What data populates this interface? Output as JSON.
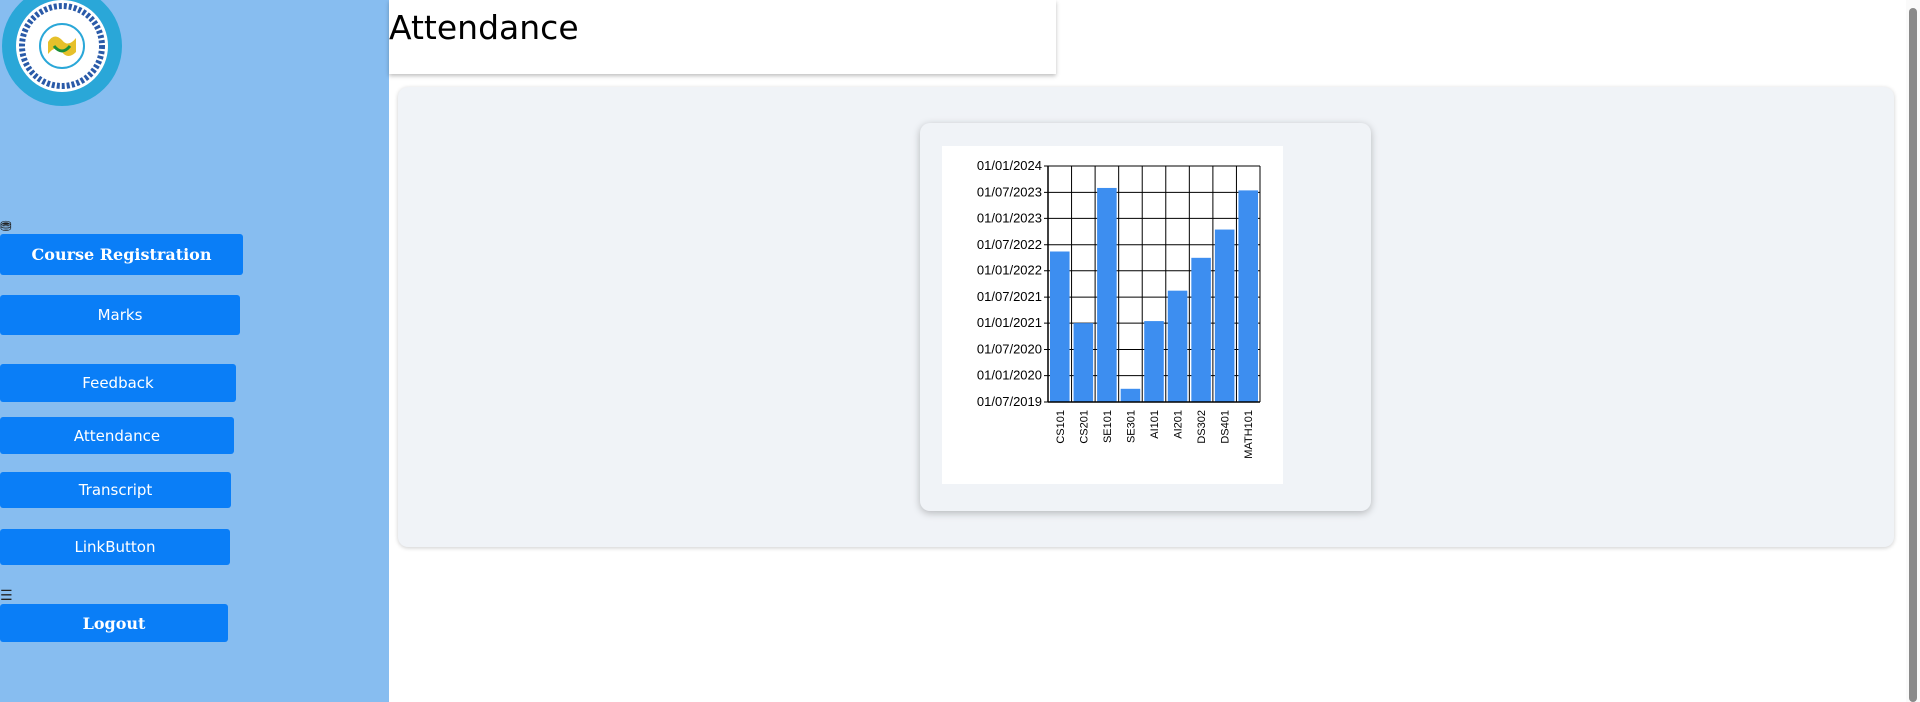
{
  "page": {
    "title": "Attendance"
  },
  "sidebar": {
    "items": [
      {
        "label": "Course Registration"
      },
      {
        "label": "Marks"
      },
      {
        "label": "Feedback"
      },
      {
        "label": "Attendance"
      },
      {
        "label": "Transcript"
      },
      {
        "label": "LinkButton"
      },
      {
        "label": "Logout"
      }
    ]
  },
  "colors": {
    "sidebar_bg": "#87bdf0",
    "button": "#0a7ef7",
    "bar": "#3d8ef0"
  },
  "icons": [
    "logo-seal",
    "dashboard-icon",
    "menu-icon"
  ],
  "chart_data": {
    "type": "bar",
    "categories": [
      "CS101",
      "CS201",
      "SE101",
      "SE301",
      "AI101",
      "AI201",
      "DS302",
      "DS401",
      "MATH101"
    ],
    "values": [
      "2022-05-15",
      "2021-01-01",
      "2023-08-01",
      "2019-10-01",
      "2021-01-15",
      "2021-08-15",
      "2022-04-01",
      "2022-10-15",
      "2023-07-15"
    ],
    "ylabel": "",
    "xlabel": "",
    "title": "",
    "ylim": [
      "2019-07-01",
      "2024-01-01"
    ],
    "yticks": [
      "01/07/2019",
      "01/01/2020",
      "01/07/2020",
      "01/01/2021",
      "01/07/2021",
      "01/01/2022",
      "01/07/2022",
      "01/01/2023",
      "01/07/2023",
      "01/01/2024"
    ],
    "grid": true
  }
}
